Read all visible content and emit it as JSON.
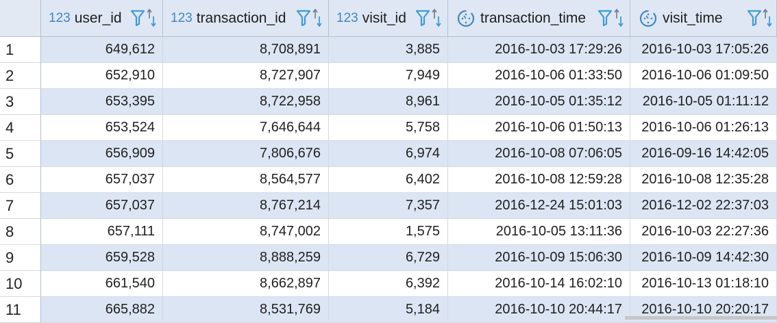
{
  "columns": [
    {
      "type_label": "123",
      "name": "user_id",
      "type": "numeric"
    },
    {
      "type_label": "123",
      "name": "transaction_id",
      "type": "numeric"
    },
    {
      "type_label": "123",
      "name": "visit_id",
      "type": "numeric"
    },
    {
      "type_label": "",
      "name": "transaction_time",
      "type": "datetime"
    },
    {
      "type_label": "",
      "name": "visit_time",
      "type": "datetime"
    }
  ],
  "rows": [
    {
      "num": "1",
      "cells": [
        "649,612",
        "8,708,891",
        "3,885",
        "2016-10-03 17:29:26",
        "2016-10-03 17:05:26"
      ]
    },
    {
      "num": "2",
      "cells": [
        "652,910",
        "8,727,907",
        "7,949",
        "2016-10-06 01:33:50",
        "2016-10-06 01:09:50"
      ]
    },
    {
      "num": "3",
      "cells": [
        "653,395",
        "8,722,958",
        "8,961",
        "2016-10-05 01:35:12",
        "2016-10-05 01:11:12"
      ]
    },
    {
      "num": "4",
      "cells": [
        "653,524",
        "7,646,644",
        "5,758",
        "2016-10-06 01:50:13",
        "2016-10-06 01:26:13"
      ]
    },
    {
      "num": "5",
      "cells": [
        "656,909",
        "7,806,676",
        "6,974",
        "2016-10-08 07:06:05",
        "2016-09-16 14:42:05"
      ]
    },
    {
      "num": "6",
      "cells": [
        "657,037",
        "8,564,577",
        "6,402",
        "2016-10-08 12:59:28",
        "2016-10-08 12:35:28"
      ]
    },
    {
      "num": "7",
      "cells": [
        "657,037",
        "8,767,214",
        "7,357",
        "2016-12-24 15:01:03",
        "2016-12-02 22:37:03"
      ]
    },
    {
      "num": "8",
      "cells": [
        "657,111",
        "8,747,002",
        "1,575",
        "2016-10-05 13:11:36",
        "2016-10-03 22:27:36"
      ]
    },
    {
      "num": "9",
      "cells": [
        "659,528",
        "8,888,259",
        "6,729",
        "2016-10-09 15:06:30",
        "2016-10-09 14:42:30"
      ]
    },
    {
      "num": "10",
      "cells": [
        "661,540",
        "8,662,897",
        "6,392",
        "2016-10-14 16:02:10",
        "2016-10-13 01:18:10"
      ]
    },
    {
      "num": "11",
      "cells": [
        "665,882",
        "8,531,769",
        "5,184",
        "2016-10-10 20:44:17",
        "2016-10-10 20:20:17"
      ]
    }
  ],
  "icons": {
    "numeric_type": "numeric-type-icon",
    "datetime_type": "clock-icon",
    "filter": "filter-icon",
    "sort": "sort-icon"
  },
  "colors": {
    "type_label": "#3f87c3",
    "header_bg": "#dee7f3",
    "alt_row_bg": "#dbe5f3",
    "filter_icon": "#3f9bd6"
  }
}
